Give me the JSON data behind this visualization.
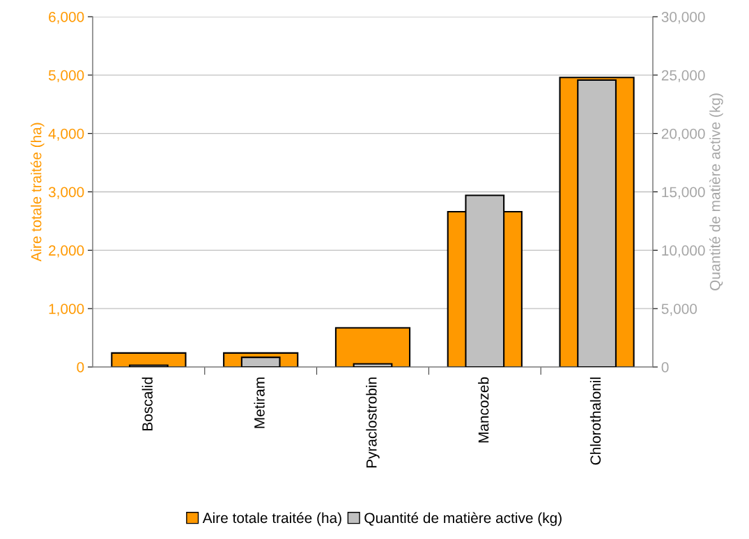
{
  "chart_data": {
    "type": "bar",
    "categories": [
      "Boscalid",
      "Metiram",
      "Pyraclostrobin",
      "Mancozeb",
      "Chlorothalonil"
    ],
    "series": [
      {
        "name": "Aire totale traitée (ha)",
        "color": "#ff9900",
        "values": [
          240,
          240,
          670,
          2660,
          4960
        ]
      },
      {
        "name": "Quantité de matière active (kg)",
        "color": "#c0c0c0",
        "axis": "y2",
        "values": [
          150,
          830,
          270,
          14700,
          24570
        ]
      }
    ],
    "ylabel": "Aire totale traitée (ha)",
    "y2label": "Quantité de matière active (kg)",
    "ylim": [
      0,
      6000
    ],
    "yticks": [
      {
        "value": 0,
        "label": "0"
      },
      {
        "value": 1000,
        "label": "1,000"
      },
      {
        "value": 2000,
        "label": "2,000"
      },
      {
        "value": 3000,
        "label": "3,000"
      },
      {
        "value": 4000,
        "label": "4,000"
      },
      {
        "value": 5000,
        "label": "5,000"
      },
      {
        "value": 6000,
        "label": "6,000"
      }
    ],
    "y2lim": [
      0,
      30000
    ],
    "y2ticks": [
      {
        "value": 0,
        "label": "0"
      },
      {
        "value": 5000,
        "label": "5,000"
      },
      {
        "value": 10000,
        "label": "10,000"
      },
      {
        "value": 15000,
        "label": "15,000"
      },
      {
        "value": 20000,
        "label": "20,000"
      },
      {
        "value": 25000,
        "label": "25,000"
      },
      {
        "value": 30000,
        "label": "30,000"
      }
    ],
    "grid": "y",
    "legend": "bottom"
  }
}
